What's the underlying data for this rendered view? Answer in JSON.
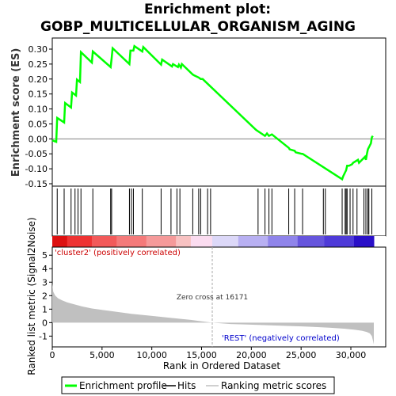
{
  "title_line1": "Enrichment plot:",
  "title_line2": "GOBP_MULTICELLULAR_ORGANISM_AGING",
  "chart_data": {
    "type": "line",
    "x_range": [
      0,
      33500
    ],
    "es_panel": {
      "ylabel": "Enrichment score (ES)",
      "ylim": [
        -0.15,
        0.33
      ],
      "yticks": [
        "0.30",
        "0.25",
        "0.20",
        "0.15",
        "0.10",
        "0.05",
        "0.00",
        "-0.05",
        "-0.10",
        "-0.15"
      ],
      "ytick_values": [
        0.3,
        0.25,
        0.2,
        0.15,
        0.1,
        0.05,
        0.0,
        -0.05,
        -0.1,
        -0.15
      ],
      "series": [
        {
          "name": "Enrichment profile",
          "color": "#00ff00",
          "x": [
            0,
            400,
            500,
            1200,
            1300,
            1900,
            2000,
            2400,
            2500,
            2800,
            2900,
            4000,
            4100,
            5900,
            6000,
            6100,
            7800,
            7900,
            8200,
            8300,
            9100,
            9200,
            11000,
            11100,
            12100,
            12200,
            12700,
            12800,
            13000,
            13100,
            14200,
            14300,
            14800,
            15000,
            15200,
            20600,
            21500,
            21700,
            21900,
            22200,
            23900,
            24000,
            24500,
            24600,
            25200,
            25300,
            29300,
            29400,
            29700,
            29800,
            30000,
            30300,
            30400,
            30900,
            31000,
            31600,
            31700,
            31800,
            31900,
            32200,
            32300,
            32400
          ],
          "y": [
            -0.005,
            -0.01,
            0.07,
            0.055,
            0.12,
            0.105,
            0.155,
            0.145,
            0.198,
            0.19,
            0.29,
            0.255,
            0.292,
            0.24,
            0.27,
            0.303,
            0.25,
            0.295,
            0.295,
            0.31,
            0.292,
            0.307,
            0.248,
            0.265,
            0.242,
            0.25,
            0.24,
            0.248,
            0.238,
            0.25,
            0.215,
            0.213,
            0.205,
            0.2,
            0.2,
            0.03,
            0.01,
            0.018,
            0.01,
            0.015,
            -0.03,
            -0.035,
            -0.04,
            -0.045,
            -0.05,
            -0.05,
            -0.135,
            -0.125,
            -0.105,
            -0.09,
            -0.09,
            -0.085,
            -0.08,
            -0.07,
            -0.08,
            -0.06,
            -0.07,
            -0.05,
            -0.035,
            -0.015,
            0.005,
            0.01
          ]
        }
      ],
      "hits": [
        500,
        1200,
        1900,
        2300,
        2600,
        2900,
        4100,
        5900,
        6000,
        7800,
        8000,
        8200,
        9100,
        11000,
        12000,
        12600,
        12900,
        14200,
        14800,
        15000,
        15700,
        16000,
        20800,
        21500,
        21900,
        22200,
        23900,
        24500,
        25300,
        27400,
        27600,
        29300,
        29600,
        29700,
        29800,
        30100,
        30400,
        30800,
        31500,
        31700,
        31900,
        32000,
        32300
      ]
    },
    "metric_panel": {
      "ylabel": "Ranked list metric (Signal2Noise)",
      "xlabel": "Rank in Ordered Dataset",
      "ylim": [
        -1.8,
        5.6
      ],
      "yticks": [
        "5",
        "4",
        "3",
        "2",
        "1",
        "0",
        "-1"
      ],
      "ytick_values": [
        5,
        4,
        3,
        2,
        1,
        0,
        -1
      ],
      "xticks": [
        "0",
        "5,000",
        "10,000",
        "15,000",
        "20,000",
        "25,000",
        "30,000"
      ],
      "xtick_values": [
        0,
        5000,
        10000,
        15000,
        20000,
        25000,
        30000
      ],
      "metric_x": [
        0,
        100,
        300,
        600,
        1000,
        1500,
        2000,
        3000,
        4000,
        5000,
        6000,
        8000,
        10000,
        12000,
        14000,
        16171,
        18000,
        20000,
        22000,
        24000,
        26000,
        28000,
        29500,
        30500,
        31300,
        31800,
        32100,
        32300,
        32400,
        32500
      ],
      "metric_y": [
        2.9,
        2.3,
        2.0,
        1.8,
        1.65,
        1.5,
        1.4,
        1.2,
        1.05,
        0.95,
        0.85,
        0.65,
        0.5,
        0.35,
        0.2,
        0.0,
        -0.1,
        -0.15,
        -0.2,
        -0.25,
        -0.3,
        -0.38,
        -0.45,
        -0.52,
        -0.6,
        -0.7,
        -0.8,
        -1.0,
        -1.3,
        -1.6
      ],
      "zero_cross": 16171,
      "zero_cross_label": "Zero cross at 16171",
      "pos_label": "'cluster2' (positively correlated)",
      "neg_label": "'REST' (negatively correlated)"
    },
    "legend": [
      "Enrichment profile",
      "Hits",
      "Ranking metric scores"
    ]
  },
  "colors": {
    "es_line": "#00ff00",
    "hits": "#000000",
    "metric_fill": "#c0c0c0",
    "zero_line": "#808080",
    "axis": "#000000",
    "pos_label": "#cc0000",
    "neg_label": "#0000cc"
  }
}
